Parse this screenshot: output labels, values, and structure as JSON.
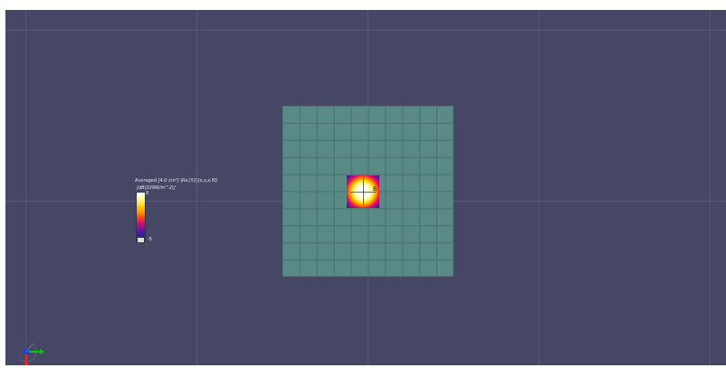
{
  "legend": {
    "title": "Averaged [4.0 cm²] |Re{S}|(x,y,z,f0)",
    "units": "[dB(229W/m^2)]",
    "tick_max": "0",
    "tick_min": "-5"
  },
  "marker": {
    "label": "B"
  },
  "colors": {
    "background": "#464665",
    "plane": "#5a8a86",
    "axis_x": "#00cc00",
    "axis_y": "#1a3aff",
    "axis_z": "#ff2020"
  }
}
